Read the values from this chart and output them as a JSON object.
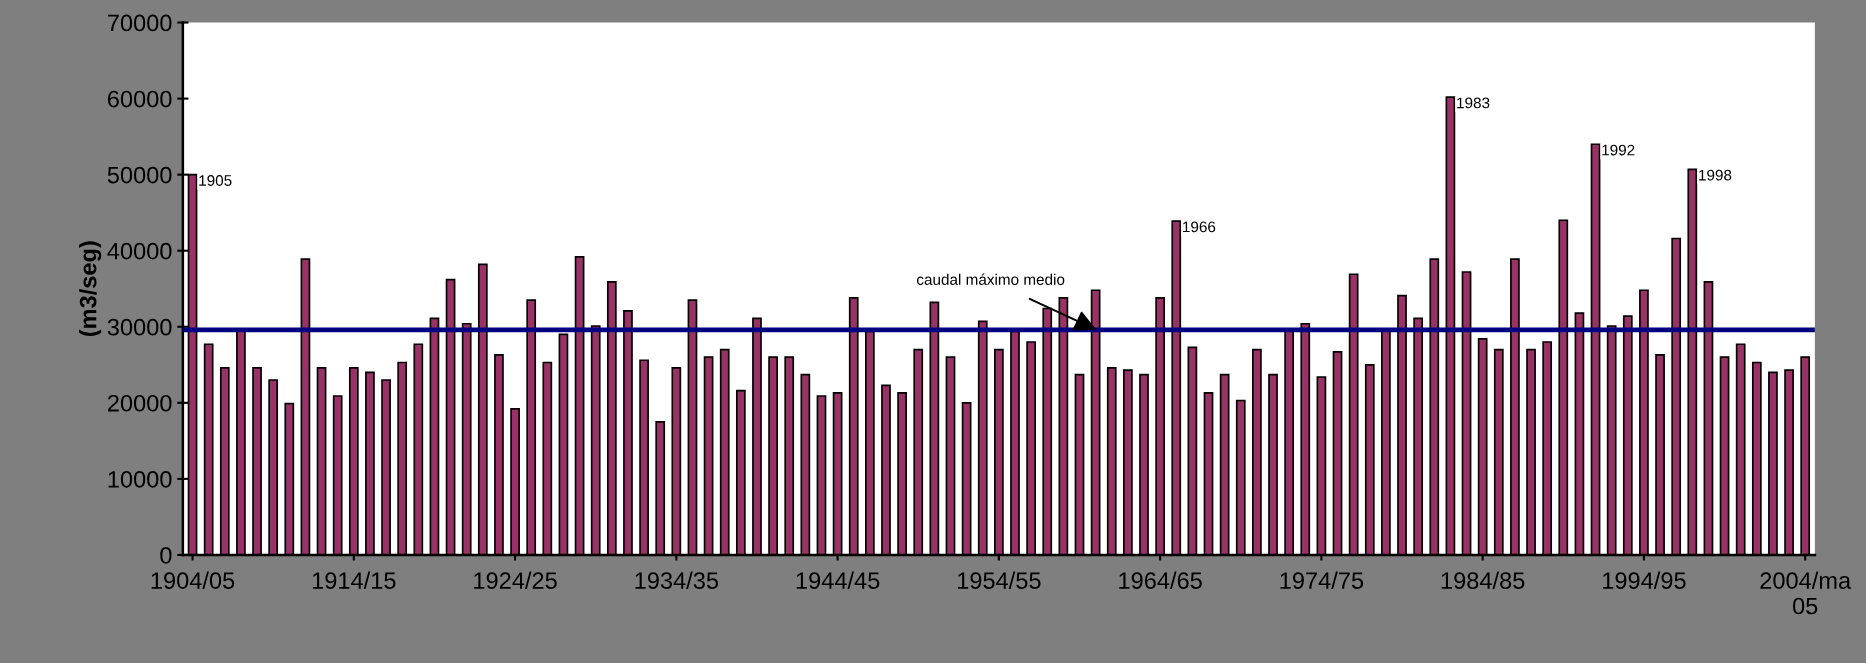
{
  "chart_data": {
    "type": "bar",
    "ylabel": "(m3/seg)",
    "categories": [
      "1904/05",
      null,
      null,
      null,
      null,
      null,
      null,
      null,
      null,
      null,
      "1914/15",
      null,
      null,
      null,
      null,
      null,
      null,
      null,
      null,
      null,
      "1924/25",
      null,
      null,
      null,
      null,
      null,
      null,
      null,
      null,
      null,
      "1934/35",
      null,
      null,
      null,
      null,
      null,
      null,
      null,
      null,
      null,
      "1944/45",
      null,
      null,
      null,
      null,
      null,
      null,
      null,
      null,
      null,
      "1954/55",
      null,
      null,
      null,
      null,
      null,
      null,
      null,
      null,
      null,
      "1964/65",
      null,
      null,
      null,
      null,
      null,
      null,
      null,
      null,
      null,
      "1974/75",
      null,
      null,
      null,
      null,
      null,
      null,
      null,
      null,
      null,
      "1984/85",
      null,
      null,
      null,
      null,
      null,
      null,
      null,
      null,
      null,
      "1994/95",
      null,
      null,
      null,
      null,
      null,
      null,
      null,
      null,
      null,
      "2004/ma\n05"
    ],
    "values": [
      50000,
      27700,
      24600,
      29700,
      24600,
      23000,
      19900,
      38900,
      24600,
      20900,
      24600,
      24000,
      23000,
      25300,
      27700,
      31100,
      36200,
      30400,
      38200,
      26300,
      19200,
      33500,
      25300,
      29000,
      39200,
      30100,
      35900,
      32100,
      25600,
      17500,
      24600,
      33500,
      26000,
      27000,
      21600,
      31100,
      26000,
      26000,
      23700,
      20900,
      21300,
      33800,
      29400,
      22300,
      21300,
      27000,
      33200,
      26000,
      20000,
      30700,
      27000,
      29400,
      28000,
      32400,
      33800,
      23700,
      34800,
      24600,
      24300,
      23700,
      33800,
      43900,
      27300,
      21300,
      23700,
      20300,
      27000,
      23700,
      29700,
      30400,
      23400,
      26700,
      36900,
      25000,
      29700,
      34100,
      31100,
      38900,
      60200,
      37200,
      28400,
      27000,
      38900,
      27000,
      28000,
      44000,
      31800,
      54000,
      30100,
      31400,
      34800,
      26300,
      41600,
      50700,
      35900,
      26000,
      27700,
      25300,
      24000,
      24300,
      26000
    ],
    "annotations": [
      "1905",
      "1966",
      "1983",
      "1992",
      "1998"
    ],
    "color": "#993366",
    "ylim": [
      0,
      70000
    ],
    "yticks": [
      0,
      10000,
      20000,
      30000,
      40000,
      50000,
      60000,
      70000
    ],
    "ref_lines": [
      {
        "axis": "y",
        "value": 29600,
        "label": "caudal máximo medio",
        "color": "#000080"
      }
    ],
    "grid": false,
    "legend": false
  }
}
